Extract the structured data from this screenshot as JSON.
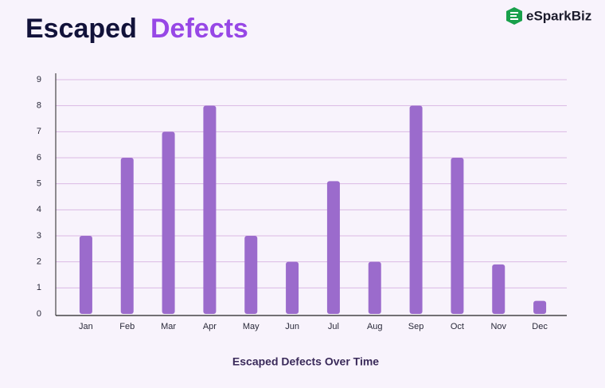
{
  "chart_data": {
    "type": "bar",
    "title": [
      "Escaped",
      "Defects"
    ],
    "brand": "eSparkBiz",
    "x_label": "Escaped Defects Over Time",
    "categories": [
      "Jan",
      "Feb",
      "Mar",
      "Apr",
      "May",
      "Jun",
      "Jul",
      "Aug",
      "Sep",
      "Oct",
      "Nov",
      "Dec"
    ],
    "values": [
      3,
      6,
      7,
      8,
      3,
      2,
      5.1,
      2,
      8,
      6,
      1.9,
      0.5
    ],
    "color": "#9b6bcc",
    "ylim": [
      0,
      9
    ],
    "yticks": [
      0,
      1,
      2,
      3,
      4,
      5,
      6,
      7,
      8,
      9
    ],
    "grid": true
  }
}
